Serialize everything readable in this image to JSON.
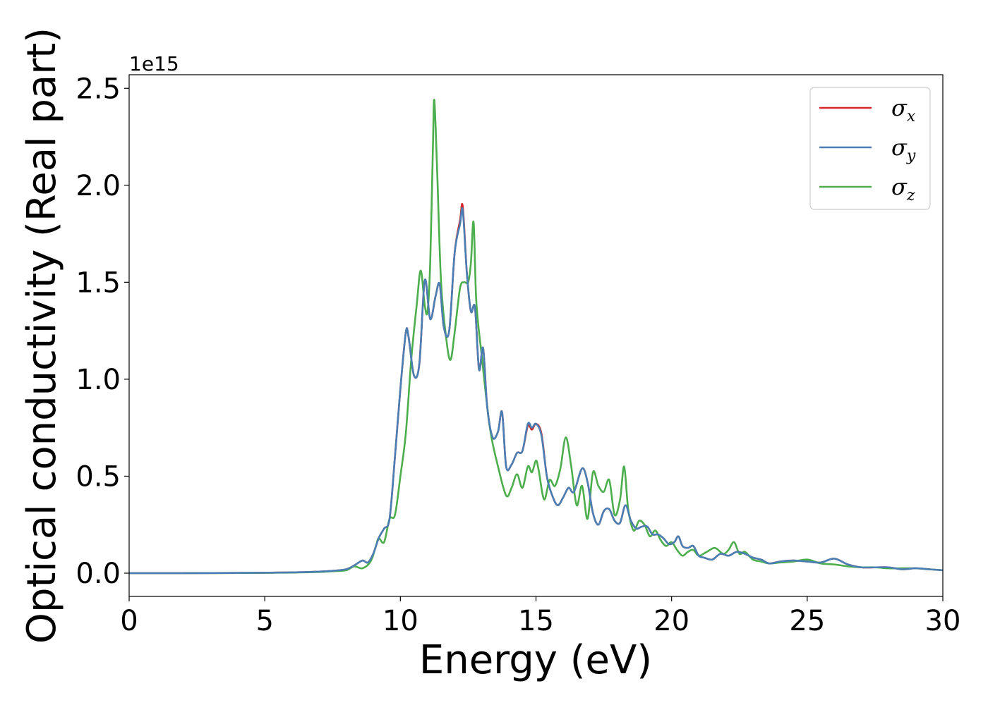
{
  "chart_data": {
    "type": "line",
    "xlabel": "Energy (eV)",
    "ylabel": "Optical conductivity (Real part)",
    "y_offset_label": "1e15",
    "xlim": [
      0,
      30
    ],
    "ylim": [
      -0.12,
      2.57
    ],
    "y_scale_factor": 1000000000000000.0,
    "x_ticks": [
      0,
      5,
      10,
      15,
      20,
      25,
      30
    ],
    "x_tick_labels": [
      "0",
      "5",
      "10",
      "15",
      "20",
      "25",
      "30"
    ],
    "y_ticks": [
      0.0,
      0.5,
      1.0,
      1.5,
      2.0,
      2.5
    ],
    "y_tick_labels": [
      "0.0",
      "0.5",
      "1.0",
      "1.5",
      "2.0",
      "2.5"
    ],
    "grid": false,
    "legend_position": "top-right",
    "series": [
      {
        "name": "σx",
        "symbol": "σ",
        "subscript": "x",
        "color": "#d62728",
        "x": [
          0,
          2,
          4,
          6,
          7,
          7.5,
          8,
          8.3,
          8.6,
          8.8,
          9.0,
          9.2,
          9.4,
          9.6,
          9.8,
          10.0,
          10.2,
          10.3,
          10.5,
          10.7,
          10.9,
          11.1,
          11.3,
          11.45,
          11.6,
          11.8,
          12.0,
          12.2,
          12.3,
          12.45,
          12.6,
          12.75,
          12.9,
          13.05,
          13.2,
          13.4,
          13.6,
          13.75,
          13.9,
          14.1,
          14.3,
          14.5,
          14.7,
          14.85,
          15.0,
          15.2,
          15.4,
          15.6,
          15.8,
          16.0,
          16.2,
          16.4,
          16.7,
          16.9,
          17.1,
          17.3,
          17.5,
          17.7,
          17.9,
          18.1,
          18.3,
          18.5,
          18.7,
          18.9,
          19.1,
          19.3,
          19.5,
          19.7,
          19.9,
          20.1,
          20.25,
          20.4,
          20.6,
          20.8,
          21.0,
          21.2,
          21.5,
          21.8,
          22.1,
          22.4,
          22.7,
          23.0,
          23.3,
          23.6,
          24.0,
          24.5,
          25.0,
          25.5,
          26.0,
          26.5,
          27.0,
          27.5,
          28.0,
          28.5,
          29.0,
          29.5,
          30.0
        ],
        "y": [
          0.0,
          0.0,
          0.001,
          0.004,
          0.008,
          0.012,
          0.02,
          0.04,
          0.065,
          0.055,
          0.1,
          0.18,
          0.23,
          0.28,
          0.6,
          0.95,
          1.24,
          1.22,
          1.02,
          1.08,
          1.51,
          1.31,
          1.43,
          1.49,
          1.27,
          1.25,
          1.65,
          1.82,
          1.89,
          1.55,
          1.35,
          1.37,
          1.05,
          1.16,
          0.86,
          0.7,
          0.73,
          0.83,
          0.55,
          0.56,
          0.62,
          0.63,
          0.76,
          0.74,
          0.77,
          0.72,
          0.5,
          0.4,
          0.35,
          0.39,
          0.44,
          0.42,
          0.54,
          0.47,
          0.31,
          0.25,
          0.32,
          0.33,
          0.27,
          0.26,
          0.35,
          0.27,
          0.23,
          0.24,
          0.24,
          0.2,
          0.2,
          0.18,
          0.15,
          0.16,
          0.19,
          0.14,
          0.13,
          0.14,
          0.09,
          0.08,
          0.07,
          0.1,
          0.09,
          0.11,
          0.1,
          0.08,
          0.07,
          0.05,
          0.06,
          0.065,
          0.06,
          0.055,
          0.075,
          0.045,
          0.03,
          0.03,
          0.03,
          0.02,
          0.025,
          0.02,
          0.015
        ]
      },
      {
        "name": "σy",
        "symbol": "σ",
        "subscript": "y",
        "color": "#4a7fb5",
        "x": [
          0,
          2,
          4,
          6,
          7,
          7.5,
          8,
          8.3,
          8.6,
          8.8,
          9.0,
          9.2,
          9.4,
          9.6,
          9.8,
          10.0,
          10.2,
          10.3,
          10.5,
          10.7,
          10.9,
          11.1,
          11.3,
          11.45,
          11.6,
          11.8,
          12.0,
          12.2,
          12.3,
          12.45,
          12.6,
          12.75,
          12.9,
          13.05,
          13.2,
          13.4,
          13.6,
          13.75,
          13.9,
          14.1,
          14.3,
          14.5,
          14.7,
          14.85,
          15.0,
          15.2,
          15.4,
          15.6,
          15.8,
          16.0,
          16.2,
          16.4,
          16.7,
          16.9,
          17.1,
          17.3,
          17.5,
          17.7,
          17.9,
          18.1,
          18.3,
          18.5,
          18.7,
          18.9,
          19.1,
          19.3,
          19.5,
          19.7,
          19.9,
          20.1,
          20.25,
          20.4,
          20.6,
          20.8,
          21.0,
          21.2,
          21.5,
          21.8,
          22.1,
          22.4,
          22.7,
          23.0,
          23.3,
          23.6,
          24.0,
          24.5,
          25.0,
          25.5,
          26.0,
          26.5,
          27.0,
          27.5,
          28.0,
          28.5,
          29.0,
          29.5,
          30.0
        ],
        "y": [
          0.0,
          0.0,
          0.001,
          0.004,
          0.008,
          0.012,
          0.02,
          0.04,
          0.065,
          0.055,
          0.1,
          0.18,
          0.23,
          0.28,
          0.6,
          0.95,
          1.24,
          1.22,
          1.02,
          1.08,
          1.51,
          1.31,
          1.43,
          1.49,
          1.27,
          1.25,
          1.65,
          1.8,
          1.87,
          1.55,
          1.35,
          1.37,
          1.05,
          1.16,
          0.86,
          0.7,
          0.73,
          0.83,
          0.55,
          0.56,
          0.62,
          0.63,
          0.77,
          0.75,
          0.77,
          0.71,
          0.5,
          0.4,
          0.35,
          0.39,
          0.44,
          0.42,
          0.54,
          0.47,
          0.31,
          0.25,
          0.32,
          0.33,
          0.27,
          0.26,
          0.35,
          0.27,
          0.23,
          0.24,
          0.24,
          0.2,
          0.2,
          0.18,
          0.15,
          0.16,
          0.19,
          0.14,
          0.13,
          0.14,
          0.09,
          0.08,
          0.07,
          0.1,
          0.09,
          0.11,
          0.1,
          0.08,
          0.07,
          0.05,
          0.06,
          0.065,
          0.06,
          0.055,
          0.075,
          0.045,
          0.03,
          0.03,
          0.03,
          0.02,
          0.025,
          0.02,
          0.015
        ]
      },
      {
        "name": "σz",
        "symbol": "σ",
        "subscript": "z",
        "color": "#4cae4c",
        "x": [
          0,
          2,
          4,
          6,
          7,
          7.5,
          8,
          8.3,
          8.6,
          8.9,
          9.1,
          9.2,
          9.4,
          9.6,
          9.8,
          10.0,
          10.2,
          10.4,
          10.6,
          10.75,
          10.9,
          11.0,
          11.1,
          11.2,
          11.25,
          11.35,
          11.5,
          11.7,
          11.85,
          12.0,
          12.2,
          12.35,
          12.5,
          12.6,
          12.7,
          12.8,
          13.0,
          13.3,
          13.6,
          13.9,
          14.1,
          14.3,
          14.5,
          14.7,
          14.85,
          15.0,
          15.1,
          15.3,
          15.5,
          15.7,
          15.9,
          16.1,
          16.3,
          16.5,
          16.7,
          16.9,
          17.1,
          17.3,
          17.5,
          17.7,
          17.9,
          18.1,
          18.25,
          18.4,
          18.6,
          18.8,
          19.0,
          19.2,
          19.4,
          19.6,
          19.8,
          20.0,
          20.2,
          20.4,
          20.6,
          20.8,
          21.0,
          21.3,
          21.6,
          21.9,
          22.1,
          22.3,
          22.5,
          22.7,
          23.0,
          23.3,
          23.6,
          24.0,
          24.5,
          25.0,
          25.5,
          26.0,
          26.5,
          27.0,
          27.5,
          28.0,
          28.5,
          29.0,
          29.5,
          30.0
        ],
        "y": [
          0.0,
          0.0,
          0.001,
          0.003,
          0.006,
          0.01,
          0.015,
          0.035,
          0.025,
          0.06,
          0.14,
          0.18,
          0.16,
          0.28,
          0.3,
          0.5,
          0.72,
          1.1,
          1.38,
          1.56,
          1.38,
          1.35,
          1.6,
          2.2,
          2.44,
          2.1,
          1.5,
          1.2,
          1.1,
          1.24,
          1.47,
          1.5,
          1.5,
          1.6,
          1.81,
          1.4,
          1.12,
          0.75,
          0.55,
          0.4,
          0.44,
          0.51,
          0.44,
          0.55,
          0.52,
          0.58,
          0.53,
          0.38,
          0.48,
          0.45,
          0.54,
          0.7,
          0.55,
          0.35,
          0.45,
          0.28,
          0.52,
          0.45,
          0.42,
          0.48,
          0.3,
          0.38,
          0.55,
          0.33,
          0.22,
          0.27,
          0.25,
          0.19,
          0.22,
          0.17,
          0.14,
          0.16,
          0.12,
          0.09,
          0.11,
          0.12,
          0.09,
          0.11,
          0.13,
          0.1,
          0.12,
          0.16,
          0.1,
          0.11,
          0.07,
          0.06,
          0.05,
          0.055,
          0.06,
          0.07,
          0.05,
          0.045,
          0.035,
          0.03,
          0.03,
          0.025,
          0.025,
          0.025,
          0.02,
          0.015
        ]
      }
    ]
  }
}
